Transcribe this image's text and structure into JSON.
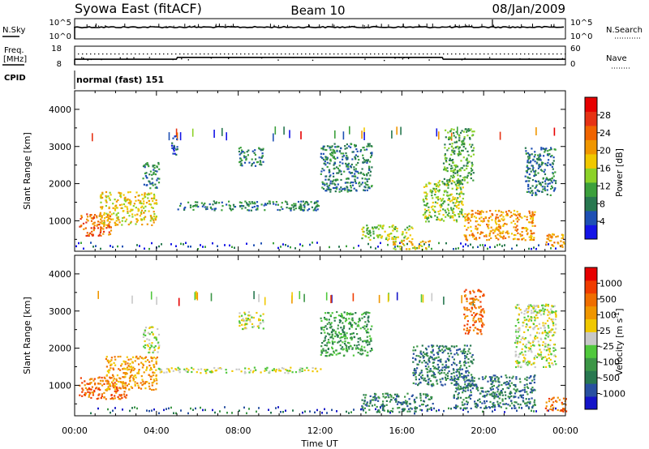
{
  "header": {
    "title": "Syowa East (fitACF)",
    "beam": "Beam 10",
    "date": "08/Jan/2009"
  },
  "panels": {
    "nsky_label": "N.Sky",
    "nsky_ticks": [
      "10^5",
      "10^0"
    ],
    "nsearch_label": "N.Search",
    "nsearch_ticks": [
      "10^5",
      "10^0"
    ],
    "freq_label": "Freq.",
    "freq_unit": "[MHz]",
    "freq_ticks": [
      "18",
      "8"
    ],
    "nave_label": "Nave",
    "nave_ticks": [
      "60",
      "0"
    ],
    "cpid_label": "CPID",
    "cpid_value": "normal (fast) 151"
  },
  "axes": {
    "ylabel": "Slant Range [km]",
    "xlabel": "Time UT",
    "yticks": [
      "1000",
      "2000",
      "3000",
      "4000"
    ],
    "xticks": [
      "00:00",
      "04:00",
      "08:00",
      "12:00",
      "16:00",
      "20:00",
      "00:00"
    ]
  },
  "power_scale": {
    "label": "Power [dB]",
    "ticks": [
      "4",
      "8",
      "12",
      "16",
      "20",
      "24",
      "28"
    ],
    "colors": [
      "#1414e6",
      "#1e50b4",
      "#287850",
      "#3ca03c",
      "#8cd228",
      "#f0c800",
      "#f09600",
      "#f06400",
      "#e63214",
      "#e60000"
    ]
  },
  "velocity_scale": {
    "label": "Velocity [m s",
    "label_sup": "-1",
    "label_end": "]",
    "ticks": [
      "1000",
      "500",
      "100",
      "25",
      "-25",
      "-100",
      "-500",
      "-1000"
    ],
    "colors": [
      "#1414c8",
      "#2850a0",
      "#287850",
      "#3c9646",
      "#50c83c",
      "#c8c8c8",
      "#f0c800",
      "#f09600",
      "#f06e00",
      "#f03c00",
      "#e60000"
    ]
  },
  "chart_data": {
    "type": "heatmap",
    "x_range_hours": [
      0,
      24
    ],
    "y_range_km": [
      180,
      4500
    ],
    "x_major_ticks_hours": [
      0,
      4,
      8,
      12,
      16,
      20,
      24
    ],
    "y_major_ticks_km": [
      1000,
      2000,
      3000,
      4000
    ],
    "frequency_mhz": [
      {
        "start_hour": 0,
        "end_hour": 5,
        "value": 11
      },
      {
        "start_hour": 5,
        "end_hour": 18,
        "value": 12
      },
      {
        "start_hour": 18,
        "end_hour": 24,
        "value": 11
      }
    ],
    "power_regions": [
      {
        "t0": 0.2,
        "t1": 1.8,
        "r0": 600,
        "r1": 1200,
        "level": 7
      },
      {
        "t0": 1.2,
        "t1": 4.0,
        "r0": 900,
        "r1": 1800,
        "level": 5
      },
      {
        "t0": 3.3,
        "t1": 4.1,
        "r0": 1900,
        "r1": 2600,
        "level": 2
      },
      {
        "t0": 4.7,
        "t1": 5.0,
        "r0": 2800,
        "r1": 3300,
        "level": 1
      },
      {
        "t0": 8.0,
        "t1": 9.2,
        "r0": 2500,
        "r1": 3000,
        "level": 2
      },
      {
        "t0": 5.0,
        "t1": 12.0,
        "r0": 1300,
        "r1": 1550,
        "level": 2
      },
      {
        "t0": 12.0,
        "t1": 14.5,
        "r0": 1800,
        "r1": 3100,
        "level": 2
      },
      {
        "t0": 14.0,
        "t1": 16.5,
        "r0": 500,
        "r1": 900,
        "level": 4
      },
      {
        "t0": 15.5,
        "t1": 17.5,
        "r0": 250,
        "r1": 500,
        "level": 5
      },
      {
        "t0": 17.0,
        "t1": 19.0,
        "r0": 1000,
        "r1": 2100,
        "level": 4
      },
      {
        "t0": 18.0,
        "t1": 19.5,
        "r0": 2000,
        "r1": 3500,
        "level": 3
      },
      {
        "t0": 19.0,
        "t1": 22.5,
        "r0": 500,
        "r1": 1300,
        "level": 6
      },
      {
        "t0": 22.0,
        "t1": 23.5,
        "r0": 1700,
        "r1": 3000,
        "level": 2
      },
      {
        "t0": 23.0,
        "t1": 24.0,
        "r0": 300,
        "r1": 700,
        "level": 6
      }
    ],
    "velocity_regions": [
      {
        "t0": 0.2,
        "t1": 2.5,
        "r0": 650,
        "r1": 1250,
        "level": 8
      },
      {
        "t0": 1.5,
        "t1": 4.0,
        "r0": 900,
        "r1": 1800,
        "level": 7
      },
      {
        "t0": 3.3,
        "t1": 4.1,
        "r0": 1900,
        "r1": 2600,
        "level": 5
      },
      {
        "t0": 8.0,
        "t1": 9.2,
        "r0": 2500,
        "r1": 3000,
        "level": 5
      },
      {
        "t0": 4.0,
        "t1": 12.0,
        "r0": 1350,
        "r1": 1500,
        "level": 5
      },
      {
        "t0": 12.0,
        "t1": 14.5,
        "r0": 1800,
        "r1": 3000,
        "level": 3
      },
      {
        "t0": 14.0,
        "t1": 17.5,
        "r0": 300,
        "r1": 800,
        "level": 2
      },
      {
        "t0": 16.5,
        "t1": 19.5,
        "r0": 1000,
        "r1": 2100,
        "level": 2
      },
      {
        "t0": 18.5,
        "t1": 22.5,
        "r0": 400,
        "r1": 1300,
        "level": 2
      },
      {
        "t0": 19.0,
        "t1": 20.0,
        "r0": 2400,
        "r1": 3600,
        "level": 8
      },
      {
        "t0": 21.5,
        "t1": 23.5,
        "r0": 1500,
        "r1": 3200,
        "level": 5
      },
      {
        "t0": 23.0,
        "t1": 24.0,
        "r0": 300,
        "r1": 700,
        "level": 8
      }
    ]
  }
}
